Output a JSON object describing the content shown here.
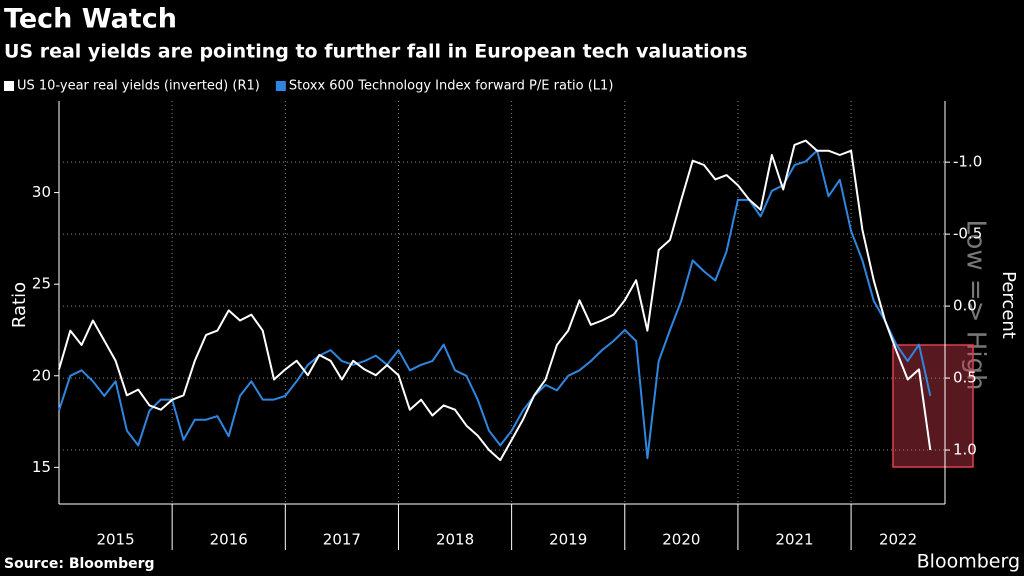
{
  "chart_data": {
    "type": "line",
    "title": "Tech Watch",
    "subtitle": "US real yields are pointing to further fall in European tech valuations",
    "ylabel": "Ratio",
    "y2label": "Percent",
    "annotation": "Low => High",
    "source": "Source: Bloomberg",
    "brand": "Bloomberg",
    "legend": "top-left",
    "grid": true,
    "xlim": [
      2015,
      2022.83
    ],
    "xticks": [
      {
        "value": 2015,
        "label": "2015"
      },
      {
        "value": 2016,
        "label": "2016"
      },
      {
        "value": 2017,
        "label": "2017"
      },
      {
        "value": 2018,
        "label": "2018"
      },
      {
        "value": 2019,
        "label": "2019"
      },
      {
        "value": 2020,
        "label": "2020"
      },
      {
        "value": 2021,
        "label": "2021"
      },
      {
        "value": 2022,
        "label": "2022"
      }
    ],
    "ylim": [
      13,
      35
    ],
    "yticks": [
      15,
      20,
      25,
      30
    ],
    "y2lim": [
      1.375,
      -1.425
    ],
    "y2ticks": [
      {
        "value": -1,
        "label": "-1.0"
      },
      -0.5,
      {
        "value": 0,
        "label": "0.0"
      },
      0.5,
      {
        "value": 1,
        "label": "1.0"
      }
    ],
    "x": [
      2015.0,
      2015.1,
      2015.2,
      2015.3,
      2015.4,
      2015.5,
      2015.6,
      2015.7,
      2015.8,
      2015.9,
      2016.0,
      2016.1,
      2016.2,
      2016.3,
      2016.4,
      2016.5,
      2016.6,
      2016.7,
      2016.8,
      2016.9,
      2017.0,
      2017.1,
      2017.2,
      2017.3,
      2017.4,
      2017.5,
      2017.6,
      2017.7,
      2017.8,
      2017.9,
      2018.0,
      2018.1,
      2018.2,
      2018.3,
      2018.4,
      2018.5,
      2018.6,
      2018.7,
      2018.8,
      2018.9,
      2019.0,
      2019.1,
      2019.2,
      2019.3,
      2019.4,
      2019.5,
      2019.6,
      2019.7,
      2019.8,
      2019.9,
      2020.0,
      2020.1,
      2020.2,
      2020.3,
      2020.4,
      2020.5,
      2020.6,
      2020.7,
      2020.8,
      2020.9,
      2021.0,
      2021.1,
      2021.2,
      2021.3,
      2021.4,
      2021.5,
      2021.6,
      2021.7,
      2021.8,
      2021.9,
      2022.0,
      2022.1,
      2022.2,
      2022.3,
      2022.4,
      2022.5,
      2022.6,
      2022.7
    ],
    "series": [
      {
        "name": "US 10-year real yields (inverted) (R1)",
        "color": "#ffffff",
        "axis": "y2",
        "values": [
          0.44,
          0.17,
          0.27,
          0.1,
          0.24,
          0.38,
          0.62,
          0.58,
          0.69,
          0.72,
          0.65,
          0.62,
          0.38,
          0.2,
          0.17,
          0.03,
          0.1,
          0.06,
          0.17,
          0.51,
          0.44,
          0.38,
          0.48,
          0.34,
          0.38,
          0.51,
          0.38,
          0.44,
          0.48,
          0.41,
          0.48,
          0.72,
          0.65,
          0.76,
          0.69,
          0.72,
          0.83,
          0.9,
          1.0,
          1.07,
          0.93,
          0.79,
          0.62,
          0.51,
          0.27,
          0.17,
          -0.04,
          0.13,
          0.1,
          0.06,
          -0.04,
          -0.18,
          0.17,
          -0.39,
          -0.46,
          -0.74,
          -1.01,
          -0.98,
          -0.88,
          -0.91,
          -0.84,
          -0.74,
          -0.67,
          -1.05,
          -0.81,
          -1.12,
          -1.15,
          -1.08,
          -1.08,
          -1.05,
          -1.08,
          -0.53,
          -0.18,
          0.1,
          0.31,
          0.51,
          0.44,
          1.0
        ]
      },
      {
        "name": "Stoxx 600 Technology Index forward P/E ratio (L1)",
        "color": "#2f86e0",
        "values": [
          18.1,
          20.0,
          20.3,
          19.7,
          18.9,
          19.7,
          17.0,
          16.2,
          18.1,
          18.7,
          18.7,
          16.5,
          17.6,
          17.6,
          17.8,
          16.7,
          18.9,
          19.7,
          18.7,
          18.7,
          18.9,
          19.7,
          20.6,
          21.1,
          21.4,
          20.8,
          20.6,
          20.8,
          21.1,
          20.6,
          21.4,
          20.3,
          20.6,
          20.8,
          21.7,
          20.3,
          20.0,
          18.7,
          17.0,
          16.2,
          17.0,
          18.1,
          18.9,
          19.5,
          19.2,
          20.0,
          20.3,
          20.8,
          21.4,
          21.9,
          22.5,
          21.9,
          15.5,
          20.8,
          22.5,
          24.1,
          26.3,
          25.7,
          25.2,
          26.8,
          29.6,
          29.6,
          28.7,
          30.1,
          30.4,
          31.5,
          31.7,
          32.3,
          29.8,
          30.7,
          27.9,
          26.3,
          24.1,
          23.0,
          21.7,
          20.8,
          21.7,
          18.9
        ]
      }
    ]
  }
}
